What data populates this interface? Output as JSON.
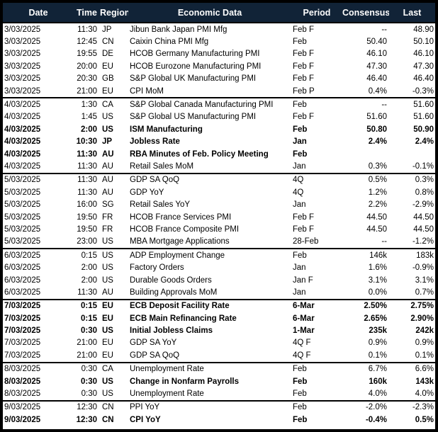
{
  "colors": {
    "header_bg": "#112337",
    "header_text": "#ffffff",
    "border": "#000000",
    "row_text": "#000000"
  },
  "table": {
    "headers": [
      "Date",
      "Time",
      "Region",
      "Economic Data",
      "Period",
      "Consensus",
      "Last"
    ],
    "groups": [
      {
        "date": "3/03/2025",
        "rows": [
          {
            "date": "3/03/2025",
            "time": "11:30",
            "region": "JP",
            "event": "Jibun Bank Japan PMI Mfg",
            "period": "Feb F",
            "consensus": "--",
            "last": "48.90",
            "bold": false
          },
          {
            "date": "3/03/2025",
            "time": "12:45",
            "region": "CN",
            "event": "Caixin China PMI Mfg",
            "period": "Feb",
            "consensus": "50.40",
            "last": "50.10",
            "bold": false
          },
          {
            "date": "3/03/2025",
            "time": "19:55",
            "region": "DE",
            "event": "HCOB Germany Manufacturing PMI",
            "period": "Feb F",
            "consensus": "46.10",
            "last": "46.10",
            "bold": false
          },
          {
            "date": "3/03/2025",
            "time": "20:00",
            "region": "EU",
            "event": "HCOB Eurozone Manufacturing PMI",
            "period": "Feb F",
            "consensus": "47.30",
            "last": "47.30",
            "bold": false
          },
          {
            "date": "3/03/2025",
            "time": "20:30",
            "region": "GB",
            "event": "S&P Global UK Manufacturing PMI",
            "period": "Feb F",
            "consensus": "46.40",
            "last": "46.40",
            "bold": false
          },
          {
            "date": "3/03/2025",
            "time": "21:00",
            "region": "EU",
            "event": "CPI MoM",
            "period": "Feb P",
            "consensus": "0.4%",
            "last": "-0.3%",
            "bold": false
          }
        ]
      },
      {
        "date": "4/03/2025",
        "rows": [
          {
            "date": "4/03/2025",
            "time": "1:30",
            "region": "CA",
            "event": "S&P Global Canada Manufacturing PMI",
            "period": "Feb",
            "consensus": "--",
            "last": "51.60",
            "bold": false
          },
          {
            "date": "4/03/2025",
            "time": "1:45",
            "region": "US",
            "event": "S&P Global US Manufacturing PMI",
            "period": "Feb F",
            "consensus": "51.60",
            "last": "51.60",
            "bold": false
          },
          {
            "date": "4/03/2025",
            "time": "2:00",
            "region": "US",
            "event": "ISM Manufacturing",
            "period": "Feb",
            "consensus": "50.80",
            "last": "50.90",
            "bold": true
          },
          {
            "date": "4/03/2025",
            "time": "10:30",
            "region": "JP",
            "event": "Jobless Rate",
            "period": "Jan",
            "consensus": "2.4%",
            "last": "2.4%",
            "bold": true
          },
          {
            "date": "4/03/2025",
            "time": "11:30",
            "region": "AU",
            "event": "RBA Minutes of Feb. Policy Meeting",
            "period": "Feb",
            "consensus": "",
            "last": "",
            "bold": true
          },
          {
            "date": "4/03/2025",
            "time": "11:30",
            "region": "AU",
            "event": "Retail Sales MoM",
            "period": "Jan",
            "consensus": "0.3%",
            "last": "-0.1%",
            "bold": false
          }
        ]
      },
      {
        "date": "5/03/2025",
        "rows": [
          {
            "date": "5/03/2025",
            "time": "11:30",
            "region": "AU",
            "event": "GDP SA QoQ",
            "period": "4Q",
            "consensus": "0.5%",
            "last": "0.3%",
            "bold": false
          },
          {
            "date": "5/03/2025",
            "time": "11:30",
            "region": "AU",
            "event": "GDP YoY",
            "period": "4Q",
            "consensus": "1.2%",
            "last": "0.8%",
            "bold": false
          },
          {
            "date": "5/03/2025",
            "time": "16:00",
            "region": "SG",
            "event": "Retail Sales YoY",
            "period": "Jan",
            "consensus": "2.2%",
            "last": "-2.9%",
            "bold": false
          },
          {
            "date": "5/03/2025",
            "time": "19:50",
            "region": "FR",
            "event": "HCOB France Services PMI",
            "period": "Feb F",
            "consensus": "44.50",
            "last": "44.50",
            "bold": false
          },
          {
            "date": "5/03/2025",
            "time": "19:50",
            "region": "FR",
            "event": "HCOB France Composite PMI",
            "period": "Feb F",
            "consensus": "44.50",
            "last": "44.50",
            "bold": false
          },
          {
            "date": "5/03/2025",
            "time": "23:00",
            "region": "US",
            "event": "MBA Mortgage Applications",
            "period": "28-Feb",
            "consensus": "--",
            "last": "-1.2%",
            "bold": false
          }
        ]
      },
      {
        "date": "6/03/2025",
        "rows": [
          {
            "date": "6/03/2025",
            "time": "0:15",
            "region": "US",
            "event": "ADP Employment Change",
            "period": "Feb",
            "consensus": "146k",
            "last": "183k",
            "bold": false
          },
          {
            "date": "6/03/2025",
            "time": "2:00",
            "region": "US",
            "event": "Factory Orders",
            "period": "Jan",
            "consensus": "1.6%",
            "last": "-0.9%",
            "bold": false
          },
          {
            "date": "6/03/2025",
            "time": "2:00",
            "region": "US",
            "event": "Durable Goods Orders",
            "period": "Jan F",
            "consensus": "3.1%",
            "last": "3.1%",
            "bold": false
          },
          {
            "date": "6/03/2025",
            "time": "11:30",
            "region": "AU",
            "event": "Building Approvals MoM",
            "period": "Jan",
            "consensus": "0.0%",
            "last": "0.7%",
            "bold": false
          }
        ]
      },
      {
        "date": "7/03/2025",
        "rows": [
          {
            "date": "7/03/2025",
            "time": "0:15",
            "region": "EU",
            "event": "ECB Deposit Facility Rate",
            "period": "6-Mar",
            "consensus": "2.50%",
            "last": "2.75%",
            "bold": true
          },
          {
            "date": "7/03/2025",
            "time": "0:15",
            "region": "EU",
            "event": "ECB Main Refinancing Rate",
            "period": "6-Mar",
            "consensus": "2.65%",
            "last": "2.90%",
            "bold": true
          },
          {
            "date": "7/03/2025",
            "time": "0:30",
            "region": "US",
            "event": "Initial Jobless Claims",
            "period": "1-Mar",
            "consensus": "235k",
            "last": "242k",
            "bold": true
          },
          {
            "date": "7/03/2025",
            "time": "21:00",
            "region": "EU",
            "event": "GDP SA YoY",
            "period": "4Q F",
            "consensus": "0.9%",
            "last": "0.9%",
            "bold": false
          },
          {
            "date": "7/03/2025",
            "time": "21:00",
            "region": "EU",
            "event": "GDP SA QoQ",
            "period": "4Q F",
            "consensus": "0.1%",
            "last": "0.1%",
            "bold": false
          }
        ]
      },
      {
        "date": "8/03/2025",
        "rows": [
          {
            "date": "8/03/2025",
            "time": "0:30",
            "region": "CA",
            "event": "Unemployment Rate",
            "period": "Feb",
            "consensus": "6.7%",
            "last": "6.6%",
            "bold": false
          },
          {
            "date": "8/03/2025",
            "time": "0:30",
            "region": "US",
            "event": "Change in Nonfarm Payrolls",
            "period": "Feb",
            "consensus": "160k",
            "last": "143k",
            "bold": true
          },
          {
            "date": "8/03/2025",
            "time": "0:30",
            "region": "US",
            "event": "Unemployment Rate",
            "period": "Feb",
            "consensus": "4.0%",
            "last": "4.0%",
            "bold": false
          }
        ]
      },
      {
        "date": "9/03/2025",
        "rows": [
          {
            "date": "9/03/2025",
            "time": "12:30",
            "region": "CN",
            "event": "PPI YoY",
            "period": "Feb",
            "consensus": "-2.0%",
            "last": "-2.3%",
            "bold": false
          },
          {
            "date": "9/03/2025",
            "time": "12:30",
            "region": "CN",
            "event": "CPI YoY",
            "period": "Feb",
            "consensus": "-0.4%",
            "last": "0.5%",
            "bold": true
          }
        ]
      }
    ]
  }
}
